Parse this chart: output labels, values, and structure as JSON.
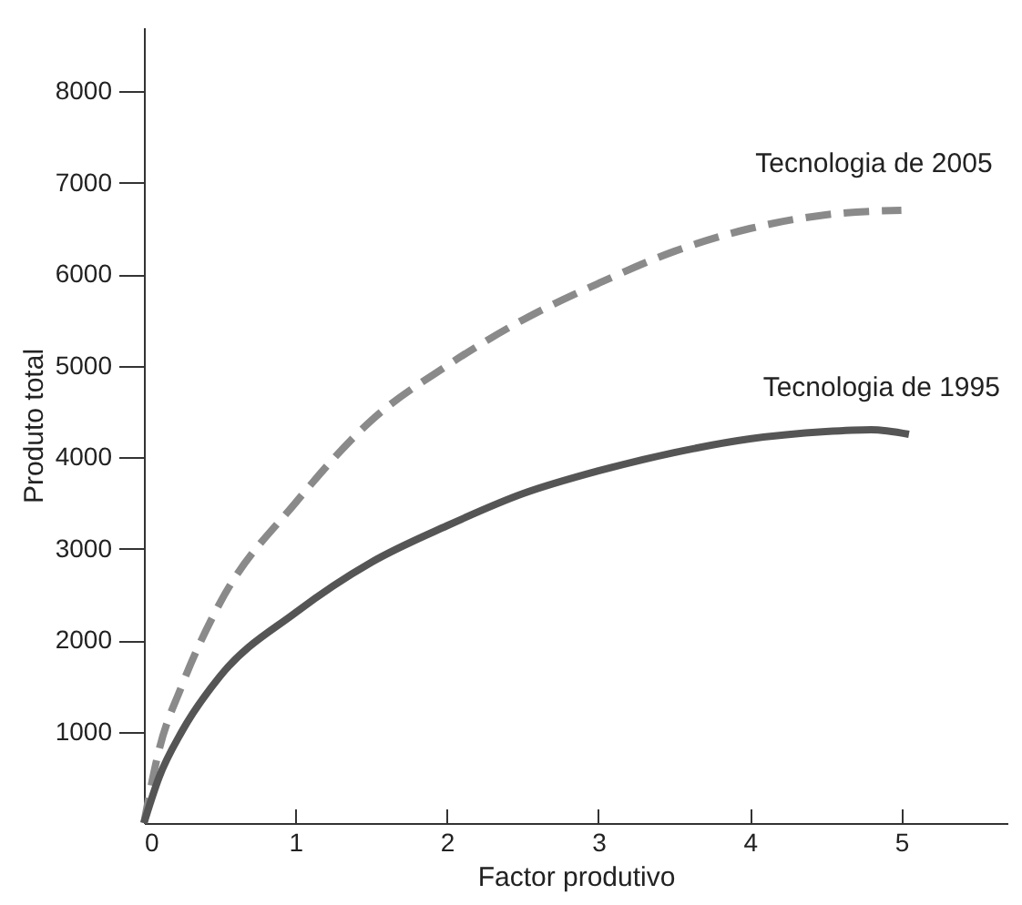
{
  "chart_data": {
    "type": "line",
    "xlabel": "Factor produtivo",
    "ylabel": "Produto total",
    "xlim": [
      0,
      5.7
    ],
    "ylim": [
      0,
      8700
    ],
    "xticks": [
      0,
      1,
      2,
      3,
      4,
      5
    ],
    "yticks": [
      1000,
      2000,
      3000,
      4000,
      5000,
      6000,
      7000,
      8000
    ],
    "grid": false,
    "legend": false,
    "marker": "none",
    "series": [
      {
        "name": "Tecnologia de 2005",
        "color": "#8a8a8a",
        "line_style": "dashed",
        "x": [
          0,
          0.1,
          0.25,
          0.5,
          1,
          1.5,
          2,
          2.5,
          3,
          3.5,
          4,
          4.5,
          5
        ],
        "values": [
          0,
          800,
          1500,
          2400,
          3500,
          4400,
          5000,
          5500,
          5900,
          6250,
          6500,
          6650,
          6700
        ]
      },
      {
        "name": "Tecnologia de 1995",
        "color": "#555555",
        "line_style": "solid",
        "x": [
          0,
          0.1,
          0.25,
          0.5,
          1,
          1.5,
          2,
          2.5,
          3,
          3.5,
          4,
          4.5,
          4.8,
          5.05
        ],
        "values": [
          0,
          500,
          1000,
          1600,
          2300,
          2850,
          3250,
          3600,
          3850,
          4050,
          4200,
          4280,
          4300,
          4250
        ]
      }
    ]
  }
}
